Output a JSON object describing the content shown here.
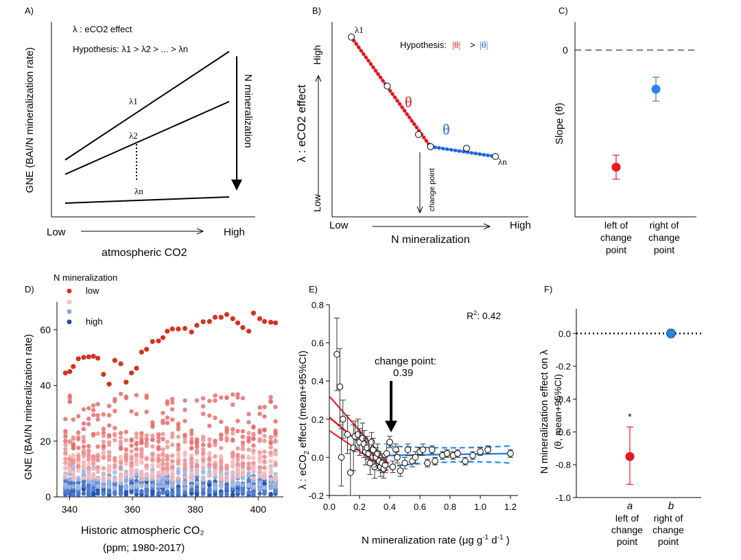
{
  "colors": {
    "red": "#e8141b",
    "blue": "#1a66e6",
    "lightblue": "#1e8cf0",
    "dotred": "#e41a1c",
    "circleBlue": "#2a85e0"
  },
  "chart_data": [
    {
      "panel": "A",
      "type": "line",
      "panel_label": "A)",
      "ylabel": "GNE (BAI/N mineralization rate)",
      "xlabel": "atmospheric CO2",
      "x_low": "Low",
      "x_high": "High",
      "legend_line1": "λ : eCO2 effect",
      "hypothesis": "Hypothesis: λ1 > λ2 > ... > λn",
      "arrow_label": "N mineralization",
      "series": [
        {
          "name": "λ1",
          "x": [
            0,
            1
          ],
          "y": [
            0.58,
            1.0
          ]
        },
        {
          "name": "λ2",
          "x": [
            0,
            1
          ],
          "y": [
            0.52,
            0.84
          ]
        },
        {
          "name": "λn",
          "x": [
            0,
            1
          ],
          "y": [
            0.1,
            0.13
          ]
        }
      ],
      "labels": {
        "l1": "λ1",
        "l2": "λ2",
        "ln": "λn"
      }
    },
    {
      "panel": "B",
      "type": "line",
      "panel_label": "B)",
      "ylabel": "λ : eCO2 effect",
      "xlabel": "N mineralization",
      "y_low": "Low",
      "y_high": "High",
      "x_low": "Low",
      "x_high": "High",
      "hypothesis_prefix": "Hypothesis:",
      "hypothesis_left": "|θ|",
      "hypothesis_mid": ">",
      "hypothesis_right": "|θ|",
      "theta_red": "θ",
      "theta_blue": "θ",
      "change_point_label": "change point",
      "lambda1": "λ1",
      "lambdan": "λn",
      "points": [
        {
          "x": 0.0,
          "y": 1.0
        },
        {
          "x": 0.25,
          "y": 0.7
        },
        {
          "x": 0.5,
          "y": 0.4
        },
        {
          "x": 0.55,
          "y": 0.33
        },
        {
          "x": 0.8,
          "y": 0.32
        },
        {
          "x": 1.0,
          "y": 0.27
        }
      ]
    },
    {
      "panel": "C",
      "type": "scatter",
      "panel_label": "C)",
      "ylabel": "Slope (θ)",
      "zero_label": "0",
      "categories": [
        "left of change point",
        "right of change point"
      ],
      "values": [
        -0.78,
        -0.26
      ],
      "ci_low": [
        -0.86,
        -0.34
      ],
      "ci_high": [
        -0.7,
        -0.18
      ],
      "ylim": [
        -1.0,
        0.05
      ]
    },
    {
      "panel": "D",
      "type": "scatter",
      "panel_label": "D)",
      "ylabel": "GNE (BAI/N mineralization rate)",
      "xlabel": "Historic atmospheric CO2",
      "xlabel2": "(ppm; 1980-2017)",
      "legend_title": "N mineralization",
      "legend_low": "low",
      "legend_high": "high",
      "xlim": [
        336,
        408
      ],
      "ylim": [
        0,
        70
      ],
      "xticks": [
        340,
        360,
        380,
        400
      ],
      "yticks": [
        0,
        20,
        40,
        60
      ],
      "top_series_x": [
        338.7,
        340.1,
        341.2,
        342.8,
        344.5,
        346.1,
        347.6,
        349.0,
        350.8,
        352.6,
        354.4,
        356.3,
        358.0,
        359.7,
        361.3,
        362.9,
        364.5,
        366.4,
        368.3,
        369.7,
        371.1,
        372.7,
        374.6,
        376.7,
        378.8,
        380.5,
        382.5,
        384.5,
        386.3,
        388.2,
        390.0,
        391.9,
        393.5,
        395.1,
        397.0,
        398.5,
        400.5,
        402.0,
        404.0,
        405.5
      ],
      "top_series_y": [
        44.5,
        45.0,
        46.8,
        49.6,
        50.1,
        50.3,
        50.5,
        49.8,
        44.0,
        40.5,
        49.0,
        47.8,
        41.2,
        44.5,
        46.2,
        52.0,
        53.0,
        55.8,
        56.0,
        57.2,
        59.5,
        60.3,
        60.3,
        60.5,
        59.2,
        61.6,
        62.9,
        63.0,
        64.5,
        64.5,
        65.5,
        64.0,
        62.5,
        60.8,
        59.5,
        66.0,
        64.0,
        63.0,
        62.7,
        62.5
      ]
    },
    {
      "panel": "E",
      "type": "scatter",
      "panel_label": "E)",
      "ylabel": "λ : eCO2 effect (mean+95%CI)",
      "xlabel": "N mineralization rate (μg g-1 d-1)",
      "r2": "R2: 0.42",
      "change_point_text": "change point:",
      "change_point_value": "0.39",
      "xlim": [
        0,
        1.25
      ],
      "ylim": [
        -0.2,
        0.8
      ],
      "xticks": [
        "0.0",
        "0.2",
        "0.4",
        "0.6",
        "0.8",
        "1.0",
        "1.2"
      ],
      "yticks": [
        "-0.2",
        "0.0",
        "0.2",
        "0.4",
        "0.6",
        "0.8"
      ],
      "x": [
        0.05,
        0.07,
        0.08,
        0.09,
        0.12,
        0.14,
        0.16,
        0.17,
        0.19,
        0.2,
        0.22,
        0.23,
        0.24,
        0.25,
        0.26,
        0.27,
        0.28,
        0.29,
        0.3,
        0.31,
        0.32,
        0.33,
        0.34,
        0.35,
        0.36,
        0.37,
        0.38,
        0.4,
        0.42,
        0.44,
        0.45,
        0.47,
        0.5,
        0.52,
        0.55,
        0.57,
        0.6,
        0.62,
        0.65,
        0.68,
        0.7,
        0.75,
        0.78,
        0.82,
        0.85,
        0.9,
        0.95,
        1.0,
        1.05,
        1.2
      ],
      "y": [
        0.54,
        0.37,
        0.0,
        0.2,
        0.12,
        -0.08,
        0.05,
        0.11,
        0.12,
        0.08,
        0.1,
        0.07,
        0.03,
        0.05,
        0.02,
        -0.03,
        0.08,
        0.04,
        -0.05,
        0.0,
        0.02,
        -0.02,
        -0.05,
        -0.03,
        -0.06,
        -0.04,
        0.02,
        0.08,
        -0.05,
        0.04,
        0.0,
        -0.07,
        -0.03,
        0.04,
        -0.02,
        0.0,
        0.03,
        0.04,
        -0.03,
        0.04,
        -0.02,
        0.01,
        0.02,
        0.01,
        0.02,
        -0.02,
        0.01,
        0.03,
        0.04,
        0.02
      ],
      "err": [
        0.19,
        0.2,
        0.15,
        0.1,
        0.1,
        0.12,
        0.12,
        0.08,
        0.08,
        0.07,
        0.08,
        0.07,
        0.07,
        0.06,
        0.06,
        0.06,
        0.05,
        0.06,
        0.06,
        0.05,
        0.05,
        0.05,
        0.05,
        0.05,
        0.05,
        0.04,
        0.05,
        0.03,
        0.03,
        0.03,
        0.03,
        0.03,
        0.03,
        0.03,
        0.03,
        0.03,
        0.02,
        0.03,
        0.02,
        0.02,
        0.02,
        0.02,
        0.02,
        0.02,
        0.02,
        0.02,
        0.02,
        0.02,
        0.02,
        0.02
      ],
      "fit_left": {
        "x": [
          0.0,
          0.39
        ],
        "y": [
          0.21,
          -0.05
        ]
      },
      "fit_right": {
        "x": [
          0.39,
          1.2
        ],
        "y": [
          0.01,
          0.02
        ]
      }
    },
    {
      "panel": "F",
      "type": "scatter",
      "panel_label": "F)",
      "ylabel": "N mineralization effect on λ",
      "ylabel2": "(θ, mean+95%CI)",
      "categories": [
        "left of change point",
        "right of change point"
      ],
      "values": [
        -0.75,
        0.0
      ],
      "ci_low": [
        -0.92,
        -0.02
      ],
      "ci_high": [
        -0.57,
        0.02
      ],
      "ylim": [
        -1.0,
        0.15
      ],
      "yticks": [
        "0.0",
        "-0.2",
        "-0.4",
        "-0.6",
        "-0.8",
        "-1.0"
      ],
      "sig_star": "*",
      "letter_left": "a",
      "letter_right": "b"
    }
  ]
}
